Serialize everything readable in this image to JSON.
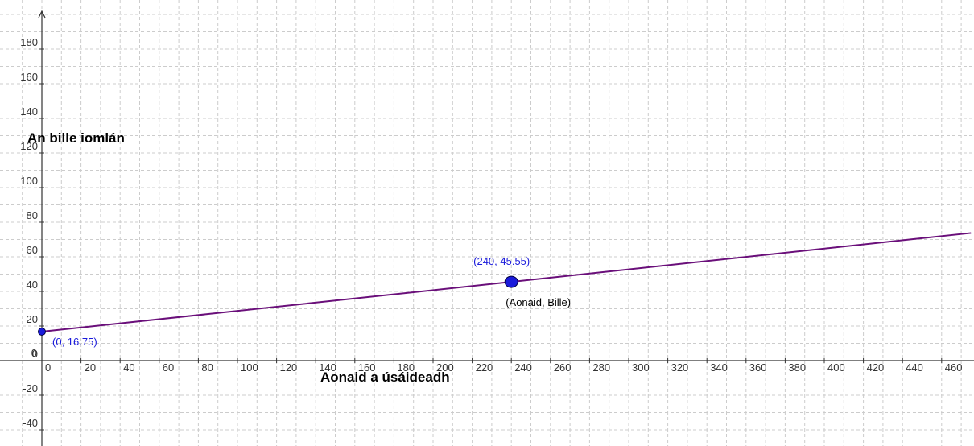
{
  "chart_data": {
    "type": "line",
    "xlabel": "Aonaid a úsáideadh",
    "ylabel": "An bille iomlán",
    "xlim": [
      -10,
      475
    ],
    "ylim": [
      -50,
      200
    ],
    "x_ticks": [
      "0",
      "20",
      "40",
      "60",
      "80",
      "100",
      "120",
      "140",
      "160",
      "180",
      "200",
      "220",
      "240",
      "260",
      "280",
      "300",
      "320",
      "340",
      "360",
      "380",
      "400",
      "420",
      "440",
      "460"
    ],
    "y_ticks": [
      "-40",
      "-20",
      "0",
      "20",
      "40",
      "60",
      "80",
      "100",
      "120",
      "140",
      "160",
      "180"
    ],
    "grid": true,
    "line": {
      "color": "#6a0f7a",
      "slope": 0.12,
      "intercept": 16.75,
      "x_range": [
        0,
        475
      ]
    },
    "points": [
      {
        "x": 0,
        "y": 16.75,
        "label": "(0, 16.75)",
        "color": "#1a1adb"
      },
      {
        "x": 240,
        "y": 45.55,
        "label": "(240, 45.55)",
        "color": "#1a1adb",
        "caption": "(Aonaid, Bille)"
      }
    ]
  }
}
